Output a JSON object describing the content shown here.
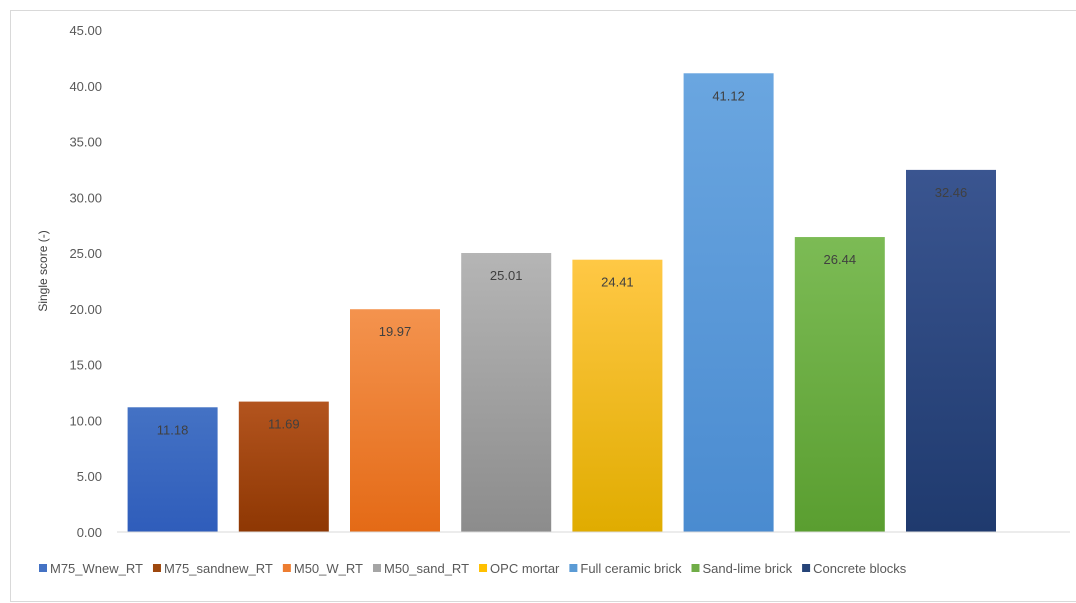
{
  "chart_data": {
    "type": "bar",
    "title": "",
    "xlabel": "",
    "ylabel": "Single score (-)",
    "ylim": [
      0,
      45
    ],
    "yticks": [
      "0.00",
      "5.00",
      "10.00",
      "15.00",
      "20.00",
      "25.00",
      "30.00",
      "35.00",
      "40.00",
      "45.00"
    ],
    "grid": false,
    "legend": "bottom",
    "categories": [
      "M75_Wnew_RT",
      "M75_sandnew_RT",
      "M50_W_RT",
      "M50_sand_RT",
      "OPC mortar",
      "Full ceramic brick",
      "Sand-lime brick",
      "Concrete blocks"
    ],
    "values": [
      11.18,
      11.69,
      19.97,
      25.01,
      24.41,
      41.12,
      26.44,
      32.46
    ],
    "value_labels": [
      "11.18",
      "11.69",
      "19.97",
      "25.01",
      "24.41",
      "41.12",
      "26.44",
      "32.46"
    ],
    "colors": [
      [
        "#4472c4",
        "#2f5dbb"
      ],
      [
        "#b3541e",
        "#8e3703"
      ],
      [
        "#f4934e",
        "#e46a16"
      ],
      [
        "#b5b5b5",
        "#8c8c8c"
      ],
      [
        "#ffc845",
        "#e0ac00"
      ],
      [
        "#6aa6e0",
        "#4a8bd0"
      ],
      [
        "#7cbb55",
        "#5a9e30"
      ],
      [
        "#3a5590",
        "#1f3a6e"
      ]
    ],
    "legend_colors": [
      "#4472c4",
      "#9e480e",
      "#ed7d31",
      "#a5a5a5",
      "#ffc000",
      "#5b9bd5",
      "#70ad47",
      "#264478"
    ]
  }
}
